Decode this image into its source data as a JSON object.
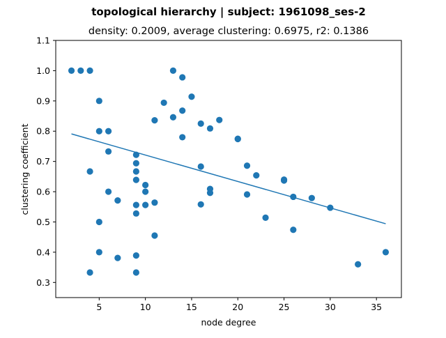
{
  "chart_data": {
    "type": "scatter",
    "title": "topological hierarchy | subject: 1961098_ses-2",
    "subtitle": "density: 0.2009,  average clustering: 0.6975,  r2: 0.1386",
    "xlabel": "node degree",
    "ylabel": "clustering coefficient",
    "xlim": [
      0.3,
      37.7
    ],
    "ylim": [
      0.25,
      1.1
    ],
    "xticks": [
      "5",
      "10",
      "15",
      "20",
      "25",
      "30",
      "35"
    ],
    "yticks": [
      "0.3",
      "0.4",
      "0.5",
      "0.6",
      "0.7",
      "0.8",
      "0.9",
      "1.0",
      "1.1"
    ],
    "grid": false,
    "color": "#1f77b4",
    "points": [
      {
        "x": 2,
        "y": 1.0
      },
      {
        "x": 3,
        "y": 1.0
      },
      {
        "x": 4,
        "y": 1.0
      },
      {
        "x": 4,
        "y": 0.667
      },
      {
        "x": 4,
        "y": 0.333
      },
      {
        "x": 5,
        "y": 0.9
      },
      {
        "x": 5,
        "y": 0.8
      },
      {
        "x": 5,
        "y": 0.5
      },
      {
        "x": 5,
        "y": 0.4
      },
      {
        "x": 6,
        "y": 0.8
      },
      {
        "x": 6,
        "y": 0.733
      },
      {
        "x": 6,
        "y": 0.6
      },
      {
        "x": 7,
        "y": 0.571
      },
      {
        "x": 7,
        "y": 0.381
      },
      {
        "x": 9,
        "y": 0.722
      },
      {
        "x": 9,
        "y": 0.694
      },
      {
        "x": 9,
        "y": 0.667
      },
      {
        "x": 9,
        "y": 0.639
      },
      {
        "x": 9,
        "y": 0.556
      },
      {
        "x": 9,
        "y": 0.528
      },
      {
        "x": 9,
        "y": 0.389
      },
      {
        "x": 9,
        "y": 0.333
      },
      {
        "x": 10,
        "y": 0.622
      },
      {
        "x": 10,
        "y": 0.6
      },
      {
        "x": 10,
        "y": 0.556
      },
      {
        "x": 11,
        "y": 0.836
      },
      {
        "x": 11,
        "y": 0.564
      },
      {
        "x": 11,
        "y": 0.455
      },
      {
        "x": 12,
        "y": 0.894
      },
      {
        "x": 13,
        "y": 1.0
      },
      {
        "x": 13,
        "y": 0.846
      },
      {
        "x": 14,
        "y": 0.978
      },
      {
        "x": 14,
        "y": 0.868
      },
      {
        "x": 14,
        "y": 0.78
      },
      {
        "x": 15,
        "y": 0.914
      },
      {
        "x": 16,
        "y": 0.825
      },
      {
        "x": 16,
        "y": 0.683
      },
      {
        "x": 16,
        "y": 0.558
      },
      {
        "x": 17,
        "y": 0.809
      },
      {
        "x": 17,
        "y": 0.609
      },
      {
        "x": 17,
        "y": 0.596
      },
      {
        "x": 18,
        "y": 0.837
      },
      {
        "x": 20,
        "y": 0.775
      },
      {
        "x": 20,
        "y": 0.774
      },
      {
        "x": 21,
        "y": 0.686
      },
      {
        "x": 21,
        "y": 0.591
      },
      {
        "x": 22,
        "y": 0.654
      },
      {
        "x": 23,
        "y": 0.514
      },
      {
        "x": 25,
        "y": 0.64
      },
      {
        "x": 25,
        "y": 0.637
      },
      {
        "x": 26,
        "y": 0.583
      },
      {
        "x": 26,
        "y": 0.474
      },
      {
        "x": 28,
        "y": 0.579
      },
      {
        "x": 30,
        "y": 0.547
      },
      {
        "x": 33,
        "y": 0.36
      },
      {
        "x": 36,
        "y": 0.4
      }
    ],
    "fit_line": {
      "x": [
        2,
        36
      ],
      "y": [
        0.791,
        0.494
      ]
    }
  }
}
